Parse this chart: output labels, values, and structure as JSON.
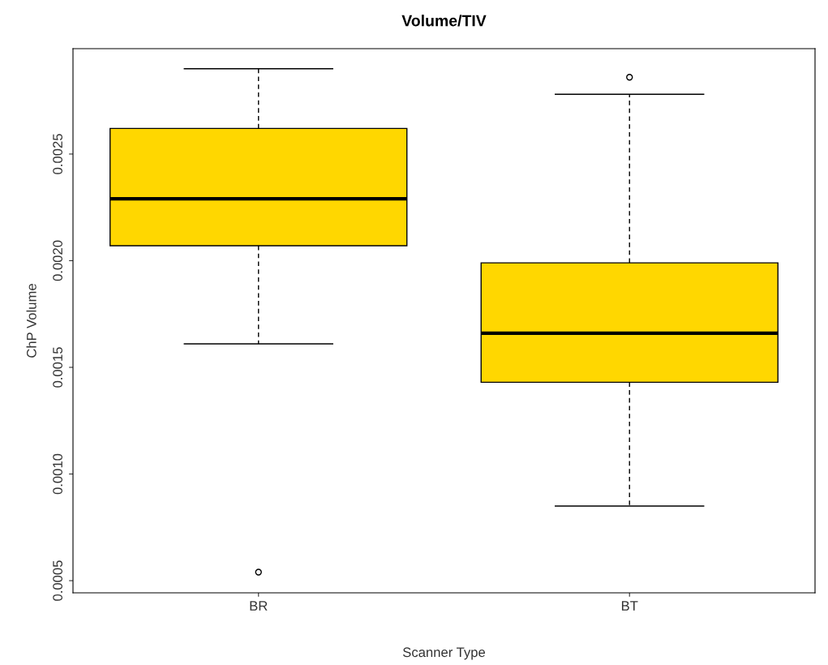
{
  "chart_data": {
    "type": "box",
    "title": "Volume/TIV",
    "xlabel": "Scanner Type",
    "ylabel": "ChP Volume",
    "categories": [
      "BR",
      "BT"
    ],
    "color": "#ffd700",
    "boxes": [
      {
        "low": 0.00161,
        "q1": 0.00207,
        "median": 0.00229,
        "q3": 0.00262,
        "high": 0.0029,
        "outliers": [
          0.00054
        ]
      },
      {
        "low": 0.00085,
        "q1": 0.00143,
        "median": 0.00166,
        "q3": 0.00199,
        "high": 0.00278,
        "outliers": [
          0.00286
        ]
      }
    ],
    "ylim": [
      0.000443,
      0.002994
    ],
    "yticks": [
      {
        "value": 0.0005,
        "label": "0.0005"
      },
      {
        "value": 0.001,
        "label": "0.0010"
      },
      {
        "value": 0.0015,
        "label": "0.0015"
      },
      {
        "value": 0.002,
        "label": "0.0020"
      },
      {
        "value": 0.0025,
        "label": "0.0025"
      }
    ],
    "grid": false
  }
}
